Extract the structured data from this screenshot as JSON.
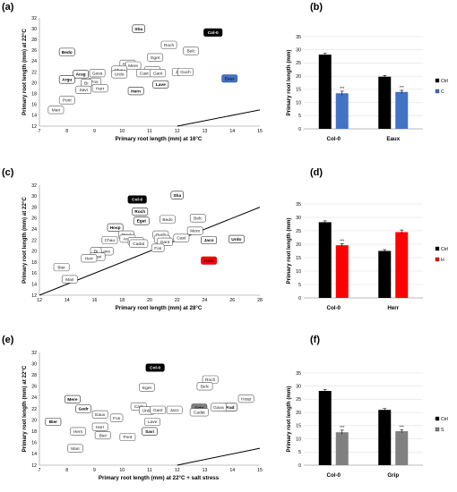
{
  "panels": [
    "(a)",
    "(b)",
    "(c)",
    "(d)",
    "(e)",
    "(f)"
  ],
  "chart_data": [
    {
      "panel": "(a)",
      "type": "scatter",
      "xlabel": "Primary root length (mm) at 16°C",
      "ylabel": "Primary root length (mm) at 22°C",
      "xlim": [
        7,
        15
      ],
      "ylim": [
        12,
        32
      ],
      "xticks": [
        7,
        8,
        9,
        10,
        11,
        12,
        13,
        14,
        15
      ],
      "yticks": [
        12,
        14,
        16,
        18,
        20,
        22,
        24,
        26,
        28,
        30,
        32
      ],
      "identity_line": true,
      "points": [
        {
          "label": "Sha",
          "x": 10.6,
          "y": 30.0,
          "style": "bold"
        },
        {
          "label": "Col-0",
          "x": 13.3,
          "y": 29.3,
          "style": "black"
        },
        {
          "label": "Roch",
          "x": 11.7,
          "y": 27.0
        },
        {
          "label": "Belc",
          "x": 12.5,
          "y": 25.9
        },
        {
          "label": "Bedo",
          "x": 8.0,
          "y": 25.7,
          "style": "bold"
        },
        {
          "label": "Eget",
          "x": 11.2,
          "y": 24.7
        },
        {
          "label": "Hosp",
          "x": 10.2,
          "y": 23.5
        },
        {
          "label": "Mere",
          "x": 10.4,
          "y": 23.2
        },
        {
          "label": "Chau",
          "x": 9.9,
          "y": 22.4
        },
        {
          "label": "Urdo",
          "x": 9.9,
          "y": 21.6
        },
        {
          "label": "Gava",
          "x": 9.1,
          "y": 21.8
        },
        {
          "label": "Arag",
          "x": 8.5,
          "y": 21.6,
          "style": "bold"
        },
        {
          "label": "Prad",
          "x": 11.1,
          "y": 22.3
        },
        {
          "label": "Cast",
          "x": 10.8,
          "y": 21.8
        },
        {
          "label": "Gant",
          "x": 11.3,
          "y": 21.8
        },
        {
          "label": "Jaco",
          "x": 12.1,
          "y": 22.0
        },
        {
          "label": "Guch",
          "x": 12.3,
          "y": 22.0
        },
        {
          "label": "Eaux",
          "x": 13.9,
          "y": 20.8,
          "style": "blue"
        },
        {
          "label": "Argu",
          "x": 8.0,
          "y": 20.6,
          "style": "bold"
        },
        {
          "label": "Fos",
          "x": 9.0,
          "y": 20.2
        },
        {
          "label": "Bi",
          "x": 8.7,
          "y": 20.0
        },
        {
          "label": "Lave",
          "x": 11.4,
          "y": 19.7,
          "style": "bold"
        },
        {
          "label": "Herr",
          "x": 9.2,
          "y": 19.0
        },
        {
          "label": "Savi",
          "x": 8.6,
          "y": 18.7
        },
        {
          "label": "Hern",
          "x": 10.5,
          "y": 18.5,
          "style": "bold"
        },
        {
          "label": "Pont",
          "x": 8.0,
          "y": 16.8
        },
        {
          "label": "Mari",
          "x": 7.6,
          "y": 15.0
        }
      ]
    },
    {
      "panel": "(b)",
      "type": "bar",
      "ylabel": "Primary root length (mm)",
      "ylim": [
        0,
        35
      ],
      "yticks": [
        0,
        5,
        10,
        15,
        20,
        25,
        30,
        35
      ],
      "categories": [
        "Col-0",
        "Eaux"
      ],
      "series": [
        {
          "name": "Ctrl",
          "color": "#000000",
          "values": [
            28.2,
            19.8
          ],
          "errors": [
            0.5,
            0.5
          ]
        },
        {
          "name": "C",
          "color": "#4472c4",
          "values": [
            13.5,
            14.0
          ],
          "errors": [
            0.8,
            0.6
          ]
        }
      ],
      "significance": [
        "***",
        "***"
      ]
    },
    {
      "panel": "(c)",
      "type": "scatter",
      "xlabel": "Primary root length (mm) at 28°C",
      "ylabel": "Primary root length (mm) at 22°C",
      "xlim": [
        12,
        28
      ],
      "ylim": [
        12,
        32
      ],
      "xticks": [
        12,
        14,
        16,
        18,
        20,
        22,
        24,
        26,
        28
      ],
      "yticks": [
        12,
        14,
        16,
        18,
        20,
        22,
        24,
        26,
        28,
        30,
        32
      ],
      "identity_line": true,
      "points": [
        {
          "label": "Sha",
          "x": 22.0,
          "y": 30.2,
          "style": "bold"
        },
        {
          "label": "Col-0",
          "x": 19.1,
          "y": 29.4,
          "style": "black"
        },
        {
          "label": "Roch",
          "x": 19.3,
          "y": 27.2,
          "style": "bold"
        },
        {
          "label": "Bedo",
          "x": 21.3,
          "y": 25.8
        },
        {
          "label": "Belc",
          "x": 23.5,
          "y": 26.0
        },
        {
          "label": "Eget",
          "x": 19.4,
          "y": 25.5,
          "style": "bold"
        },
        {
          "label": "Hosp",
          "x": 17.5,
          "y": 24.3,
          "style": "bold"
        },
        {
          "label": "Mere",
          "x": 23.3,
          "y": 23.7
        },
        {
          "label": "Prad",
          "x": 18.3,
          "y": 23.0
        },
        {
          "label": "Guch",
          "x": 20.8,
          "y": 23.0
        },
        {
          "label": "Chau",
          "x": 17.1,
          "y": 22.0
        },
        {
          "label": "Arag",
          "x": 18.4,
          "y": 22.3
        },
        {
          "label": "Gava",
          "x": 19.0,
          "y": 21.8
        },
        {
          "label": "Cast",
          "x": 22.3,
          "y": 22.4
        },
        {
          "label": "Urdo",
          "x": 20.9,
          "y": 22.2
        },
        {
          "label": "Jaco",
          "x": 24.3,
          "y": 22.0,
          "style": "bold"
        },
        {
          "label": "Urdo",
          "x": 26.3,
          "y": 22.2,
          "style": "bold"
        },
        {
          "label": "Gant",
          "x": 21.1,
          "y": 21.7
        },
        {
          "label": "Cadat",
          "x": 19.2,
          "y": 21.4
        },
        {
          "label": "Fos",
          "x": 20.6,
          "y": 20.6
        },
        {
          "label": "Lave",
          "x": 16.8,
          "y": 20.0
        },
        {
          "label": "Bi",
          "x": 16.1,
          "y": 20.0
        },
        {
          "label": "Savi",
          "x": 16.2,
          "y": 19.0
        },
        {
          "label": "Herr",
          "x": 15.6,
          "y": 18.7
        },
        {
          "label": "Hern",
          "x": 24.3,
          "y": 18.3,
          "style": "red"
        },
        {
          "label": "Bier",
          "x": 13.6,
          "y": 17.1
        },
        {
          "label": "Mari",
          "x": 14.2,
          "y": 14.9
        }
      ]
    },
    {
      "panel": "(d)",
      "type": "bar",
      "ylabel": "Primary root length (mm)",
      "ylim": [
        0,
        35
      ],
      "yticks": [
        0,
        5,
        10,
        15,
        20,
        25,
        30,
        35
      ],
      "categories": [
        "Col-0",
        "Herr"
      ],
      "series": [
        {
          "name": "Ctrl",
          "color": "#000000",
          "values": [
            28.2,
            17.5
          ],
          "errors": [
            0.5,
            0.5
          ]
        },
        {
          "name": "H",
          "color": "#ff0000",
          "values": [
            19.6,
            24.5
          ],
          "errors": [
            0.6,
            0.8
          ]
        }
      ],
      "significance": [
        "***",
        ""
      ]
    },
    {
      "panel": "(e)",
      "type": "scatter",
      "xlabel": "Primary root length (mm) at 22°C + salt stress",
      "ylabel": "Primary root length (mm) at 22°C",
      "xlim": [
        7,
        15
      ],
      "ylim": [
        12,
        32
      ],
      "xticks": [
        7,
        8,
        9,
        10,
        11,
        12,
        13,
        14,
        15
      ],
      "yticks": [
        12,
        14,
        16,
        18,
        20,
        22,
        24,
        26,
        28,
        30,
        32
      ],
      "identity_line": true,
      "points": [
        {
          "label": "Col-0",
          "x": 11.2,
          "y": 29.3,
          "style": "black"
        },
        {
          "label": "Roch",
          "x": 13.2,
          "y": 27.2
        },
        {
          "label": "Eget",
          "x": 10.9,
          "y": 25.8
        },
        {
          "label": "Belc",
          "x": 13.0,
          "y": 26.0
        },
        {
          "label": "Mere",
          "x": 8.2,
          "y": 23.7,
          "style": "bold"
        },
        {
          "label": "Hosp",
          "x": 14.5,
          "y": 23.8
        },
        {
          "label": "Gedr",
          "x": 8.6,
          "y": 22.0,
          "style": "bold"
        },
        {
          "label": "Grip",
          "x": 12.8,
          "y": 22.2,
          "style": "gray"
        },
        {
          "label": "Prad",
          "x": 13.9,
          "y": 22.3,
          "style": "bold"
        },
        {
          "label": "Gava",
          "x": 13.5,
          "y": 22.3
        },
        {
          "label": "Cast",
          "x": 10.6,
          "y": 22.4
        },
        {
          "label": "Urdo",
          "x": 10.9,
          "y": 21.7
        },
        {
          "label": "Gant",
          "x": 11.3,
          "y": 21.8
        },
        {
          "label": "Jaco",
          "x": 11.9,
          "y": 21.8
        },
        {
          "label": "Cadat",
          "x": 12.8,
          "y": 21.4
        },
        {
          "label": "Eaux",
          "x": 9.2,
          "y": 21.0
        },
        {
          "label": "Fos",
          "x": 9.8,
          "y": 20.4
        },
        {
          "label": "Bier",
          "x": 7.5,
          "y": 19.7,
          "style": "bold"
        },
        {
          "label": "Lave",
          "x": 11.1,
          "y": 19.7
        },
        {
          "label": "Herr",
          "x": 9.2,
          "y": 18.8
        },
        {
          "label": "Hern",
          "x": 8.4,
          "y": 18.0
        },
        {
          "label": "Savi",
          "x": 11.0,
          "y": 18.0,
          "style": "bold"
        },
        {
          "label": "Biel",
          "x": 9.3,
          "y": 17.3
        },
        {
          "label": "Pont",
          "x": 10.2,
          "y": 17.0
        },
        {
          "label": "Mari",
          "x": 8.3,
          "y": 15.0
        }
      ]
    },
    {
      "panel": "(f)",
      "type": "bar",
      "ylabel": "Primary root length (mm)",
      "ylim": [
        0,
        35
      ],
      "yticks": [
        0,
        5,
        10,
        15,
        20,
        25,
        30,
        35
      ],
      "categories": [
        "Col-0",
        "Grip"
      ],
      "series": [
        {
          "name": "Ctrl",
          "color": "#000000",
          "values": [
            28.2,
            21.0
          ],
          "errors": [
            0.5,
            0.5
          ]
        },
        {
          "name": "S",
          "color": "#808080",
          "values": [
            12.5,
            12.9
          ],
          "errors": [
            0.8,
            0.6
          ]
        }
      ],
      "significance": [
        "***",
        "***"
      ]
    }
  ]
}
